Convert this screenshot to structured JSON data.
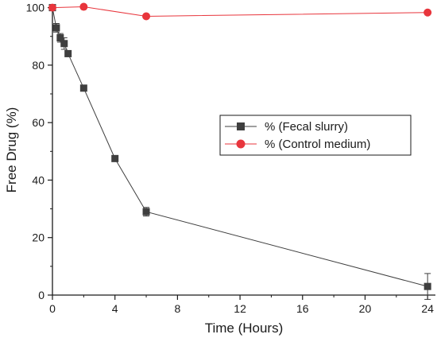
{
  "chart_data": {
    "type": "line",
    "xlabel": "Time (Hours)",
    "ylabel": "Free Drug (%)",
    "xlim": [
      0,
      24.5
    ],
    "ylim": [
      0,
      101
    ],
    "x_ticks": [
      0,
      4,
      8,
      12,
      16,
      20,
      24
    ],
    "y_ticks": [
      0,
      20,
      40,
      60,
      80,
      100
    ],
    "grid": false,
    "legend_position": "center-right",
    "series": [
      {
        "name": "% (Fecal slurry)",
        "marker": "square",
        "color": "#3f3f3f",
        "x": [
          0,
          0.25,
          0.5,
          0.75,
          1,
          2,
          4,
          6,
          24
        ],
        "y": [
          100,
          93,
          89.5,
          87.5,
          84,
          72,
          47.5,
          29,
          3
        ],
        "error": [
          0,
          1.5,
          1.5,
          2,
          0,
          0,
          0,
          1.5,
          4.5
        ]
      },
      {
        "name": "% (Control medium)",
        "marker": "circle",
        "color": "#e8353c",
        "x": [
          0,
          2,
          6,
          24
        ],
        "y": [
          100,
          100.3,
          97,
          98.3
        ],
        "error": [
          0,
          0,
          0,
          0
        ]
      }
    ]
  }
}
